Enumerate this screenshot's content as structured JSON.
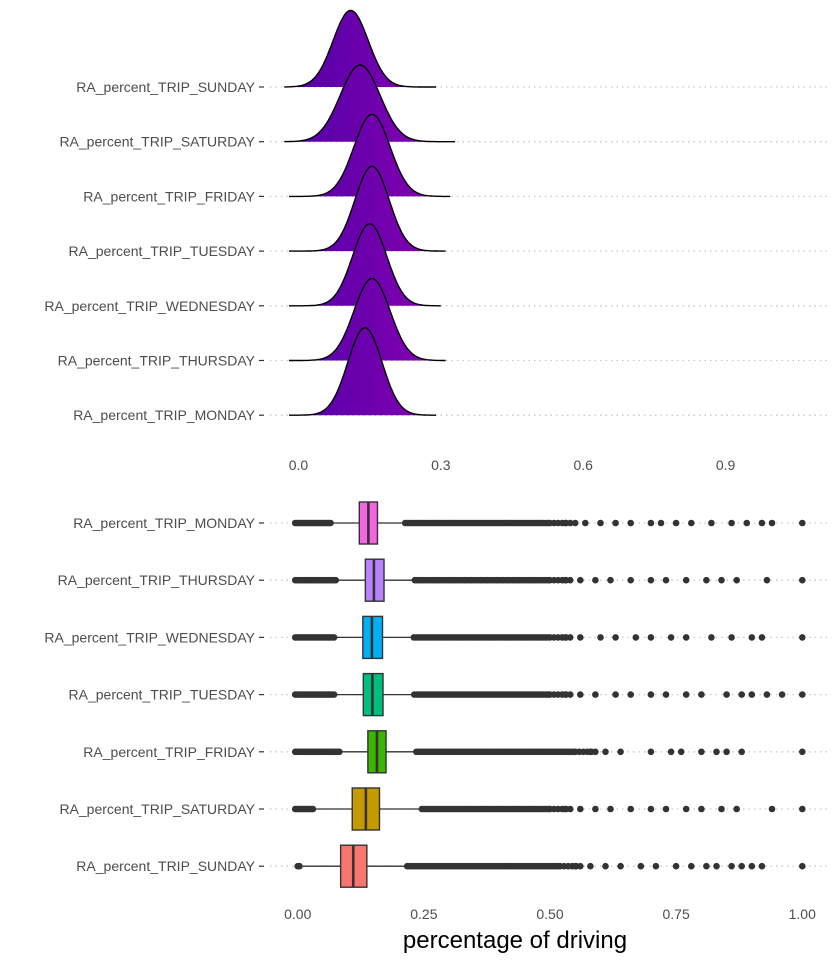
{
  "chart_data": [
    {
      "type": "ridgeline",
      "categories": [
        "RA_percent_TRIP_SUNDAY",
        "RA_percent_TRIP_SATURDAY",
        "RA_percent_TRIP_FRIDAY",
        "RA_percent_TRIP_TUESDAY",
        "RA_percent_TRIP_WEDNESDAY",
        "RA_percent_TRIP_THURSDAY",
        "RA_percent_TRIP_MONDAY"
      ],
      "density_shape": [
        {
          "range": [
            -0.03,
            0.29
          ],
          "peak": 0.11,
          "sd": 0.037,
          "height": 1.4
        },
        {
          "range": [
            -0.03,
            0.33
          ],
          "peak": 0.13,
          "sd": 0.042,
          "height": 1.4
        },
        {
          "range": [
            -0.02,
            0.32
          ],
          "peak": 0.155,
          "sd": 0.038,
          "height": 1.5
        },
        {
          "range": [
            -0.02,
            0.31
          ],
          "peak": 0.155,
          "sd": 0.036,
          "height": 1.55
        },
        {
          "range": [
            -0.02,
            0.3
          ],
          "peak": 0.15,
          "sd": 0.036,
          "height": 1.5
        },
        {
          "range": [
            -0.02,
            0.31
          ],
          "peak": 0.155,
          "sd": 0.038,
          "height": 1.5
        },
        {
          "range": [
            -0.02,
            0.29
          ],
          "peak": 0.14,
          "sd": 0.036,
          "height": 1.6
        }
      ],
      "xlim": [
        -0.06,
        1.12
      ],
      "xticks": [
        "0.0",
        "0.3",
        "0.6",
        "0.9"
      ],
      "xtick_values": [
        0.0,
        0.3,
        0.6,
        0.9
      ],
      "fill_gradient": [
        "#4B00A8",
        "#8F00B2"
      ],
      "grid": "horizontal dotted"
    },
    {
      "type": "boxplot",
      "categories": [
        "RA_percent_TRIP_MONDAY",
        "RA_percent_TRIP_THURSDAY",
        "RA_percent_TRIP_WEDNESDAY",
        "RA_percent_TRIP_TUESDAY",
        "RA_percent_TRIP_FRIDAY",
        "RA_percent_TRIP_SATURDAY",
        "RA_percent_TRIP_SUNDAY"
      ],
      "boxes": [
        {
          "q1": 0.122,
          "median": 0.14,
          "q3": 0.158,
          "whisker_low": 0.068,
          "whisker_high": 0.208,
          "color": "#F564E3"
        },
        {
          "q1": 0.134,
          "median": 0.151,
          "q3": 0.171,
          "whisker_low": 0.08,
          "whisker_high": 0.227,
          "color": "#B983FF"
        },
        {
          "q1": 0.129,
          "median": 0.147,
          "q3": 0.168,
          "whisker_low": 0.072,
          "whisker_high": 0.225,
          "color": "#00B0F6"
        },
        {
          "q1": 0.13,
          "median": 0.148,
          "q3": 0.169,
          "whisker_low": 0.072,
          "whisker_high": 0.226,
          "color": "#00BF7D"
        },
        {
          "q1": 0.139,
          "median": 0.157,
          "q3": 0.175,
          "whisker_low": 0.085,
          "whisker_high": 0.23,
          "color": "#39B600"
        },
        {
          "q1": 0.108,
          "median": 0.135,
          "q3": 0.162,
          "whisker_low": 0.033,
          "whisker_high": 0.241,
          "color": "#C49A00"
        },
        {
          "q1": 0.085,
          "median": 0.11,
          "q3": 0.137,
          "whisker_low": 0.01,
          "whisker_high": 0.212,
          "color": "#F8766D"
        }
      ],
      "outliers": [
        {
          "low_range": [
            -0.005,
            0.065
          ],
          "high_dense_to": 0.5,
          "high_points": [
            0.53,
            0.55,
            0.57,
            0.6,
            0.63,
            0.66,
            0.7,
            0.72,
            0.75,
            0.78,
            0.82,
            0.86,
            0.89,
            0.92,
            0.94,
            1.0
          ]
        },
        {
          "low_range": [
            -0.005,
            0.078
          ],
          "high_dense_to": 0.5,
          "high_points": [
            0.53,
            0.56,
            0.59,
            0.62,
            0.66,
            0.7,
            0.73,
            0.77,
            0.81,
            0.84,
            0.87,
            0.93,
            1.0
          ]
        },
        {
          "low_range": [
            -0.005,
            0.072
          ],
          "high_dense_to": 0.5,
          "high_points": [
            0.53,
            0.56,
            0.6,
            0.63,
            0.67,
            0.7,
            0.74,
            0.77,
            0.82,
            0.86,
            0.9,
            0.92,
            1.0
          ]
        },
        {
          "low_range": [
            -0.005,
            0.072
          ],
          "high_dense_to": 0.5,
          "high_points": [
            0.53,
            0.56,
            0.59,
            0.63,
            0.66,
            0.7,
            0.73,
            0.77,
            0.8,
            0.85,
            0.88,
            0.9,
            0.93,
            0.96,
            1.0
          ]
        },
        {
          "low_range": [
            -0.005,
            0.085
          ],
          "high_dense_to": 0.55,
          "high_points": [
            0.58,
            0.61,
            0.64,
            0.7,
            0.74,
            0.76,
            0.8,
            0.83,
            0.85,
            0.88,
            1.0
          ]
        },
        {
          "low_range": [
            -0.005,
            0.03
          ],
          "high_dense_to": 0.5,
          "high_points": [
            0.53,
            0.56,
            0.59,
            0.62,
            0.66,
            0.7,
            0.73,
            0.77,
            0.8,
            0.84,
            0.87,
            0.94,
            1.0
          ]
        },
        {
          "low_range": [
            0.0,
            0.005
          ],
          "high_dense_to": 0.52,
          "high_points": [
            0.55,
            0.58,
            0.61,
            0.64,
            0.68,
            0.71,
            0.75,
            0.78,
            0.81,
            0.83,
            0.86,
            0.88,
            0.9,
            0.92,
            1.0
          ]
        }
      ],
      "xlim": [
        -0.055,
        1.055
      ],
      "xticks": [
        "0.00",
        "0.25",
        "0.50",
        "0.75",
        "1.00"
      ],
      "xtick_values": [
        0.0,
        0.25,
        0.5,
        0.75,
        1.0
      ],
      "xlabel": "percentage of driving",
      "grid": "horizontal dotted"
    }
  ]
}
